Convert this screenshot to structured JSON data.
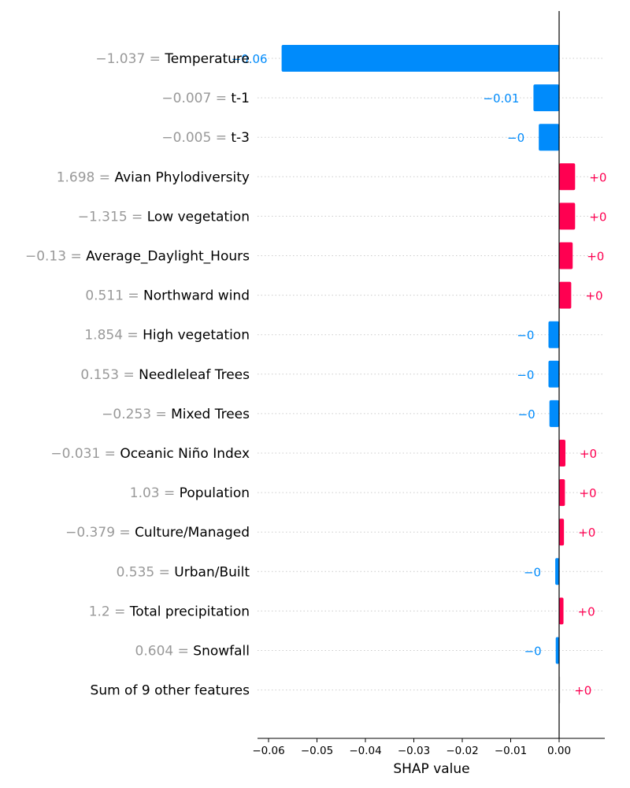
{
  "chart_data": {
    "type": "bar",
    "orientation": "horizontal",
    "title": "",
    "xlabel": "SHAP value",
    "ylabel": "",
    "xlim": [
      -0.064,
      0.0097
    ],
    "xticks": [
      -0.06,
      -0.05,
      -0.04,
      -0.03,
      -0.02,
      -0.01,
      0.0
    ],
    "xtick_labels": [
      "−0.06",
      "−0.05",
      "−0.04",
      "−0.03",
      "−0.02",
      "−0.01",
      "0.00"
    ],
    "grid": "horizontal dotted",
    "colors": {
      "positive": "#ff0051",
      "negative": "#008bfb",
      "other": "#e0e0e0",
      "feature_value": "#999999",
      "axis": "#000000",
      "grid": "#cccccc"
    },
    "features": [
      {
        "feature_value": "−1.037 =",
        "name": "Temperature",
        "shap": -0.0573,
        "label": "−0.06"
      },
      {
        "feature_value": "−0.007 =",
        "name": "t-1",
        "shap": -0.0053,
        "label": "−0.01"
      },
      {
        "feature_value": "−0.005 =",
        "name": "t-3",
        "shap": -0.0042,
        "label": "−0"
      },
      {
        "feature_value": "1.698 =",
        "name": "Avian Phylodiversity",
        "shap": 0.0033,
        "label": "+0"
      },
      {
        "feature_value": "−1.315 =",
        "name": "Low vegetation",
        "shap": 0.0033,
        "label": "+0"
      },
      {
        "feature_value": "−0.13 =",
        "name": "Average_Daylight_Hours",
        "shap": 0.0028,
        "label": "+0"
      },
      {
        "feature_value": "0.511 =",
        "name": "Northward wind",
        "shap": 0.0025,
        "label": "+0"
      },
      {
        "feature_value": "1.854 =",
        "name": "High vegetation",
        "shap": -0.0022,
        "label": "−0"
      },
      {
        "feature_value": "0.153 =",
        "name": "Needleleaf Trees",
        "shap": -0.0022,
        "label": "−0"
      },
      {
        "feature_value": "−0.253 =",
        "name": "Mixed Trees",
        "shap": -0.002,
        "label": "−0"
      },
      {
        "feature_value": "−0.031 =",
        "name": "Oceanic Niño Index",
        "shap": 0.0013,
        "label": "+0"
      },
      {
        "feature_value": "1.03 =",
        "name": "Population",
        "shap": 0.0012,
        "label": "+0"
      },
      {
        "feature_value": "−0.379 =",
        "name": "Culture/Managed",
        "shap": 0.001,
        "label": "+0"
      },
      {
        "feature_value": "0.535 =",
        "name": "Urban/Built",
        "shap": -0.0008,
        "label": "−0"
      },
      {
        "feature_value": "1.2 =",
        "name": "Total precipitation",
        "shap": 0.0009,
        "label": "+0"
      },
      {
        "feature_value": "0.604 =",
        "name": "Snowfall",
        "shap": -0.0007,
        "label": "−0"
      },
      {
        "feature_value": "",
        "name": "Sum of 9 other features",
        "shap": 0.0002,
        "label": "+0",
        "other": true
      }
    ]
  }
}
